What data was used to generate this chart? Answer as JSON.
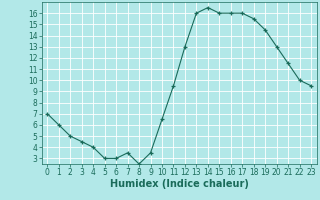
{
  "x": [
    0,
    1,
    2,
    3,
    4,
    5,
    6,
    7,
    8,
    9,
    10,
    11,
    12,
    13,
    14,
    15,
    16,
    17,
    18,
    19,
    20,
    21,
    22,
    23
  ],
  "y": [
    7.0,
    6.0,
    5.0,
    4.5,
    4.0,
    3.0,
    3.0,
    3.5,
    2.5,
    3.5,
    6.5,
    9.5,
    13.0,
    16.0,
    16.5,
    16.0,
    16.0,
    16.0,
    15.5,
    14.5,
    13.0,
    11.5,
    10.0,
    9.5
  ],
  "xlabel": "Humidex (Indice chaleur)",
  "ylim": [
    2.5,
    17.0
  ],
  "xlim": [
    -0.5,
    23.5
  ],
  "yticks": [
    3,
    4,
    5,
    6,
    7,
    8,
    9,
    10,
    11,
    12,
    13,
    14,
    15,
    16
  ],
  "xticks": [
    0,
    1,
    2,
    3,
    4,
    5,
    6,
    7,
    8,
    9,
    10,
    11,
    12,
    13,
    14,
    15,
    16,
    17,
    18,
    19,
    20,
    21,
    22,
    23
  ],
  "line_color": "#1a6b5a",
  "marker_color": "#1a6b5a",
  "bg_color": "#b2e8e8",
  "grid_bg_color": "#cce8e8",
  "grid_color": "#ffffff",
  "axes_color": "#1a6b5a",
  "label_color": "#1a6b5a",
  "font_size_tick": 5.5,
  "font_size_xlabel": 7
}
